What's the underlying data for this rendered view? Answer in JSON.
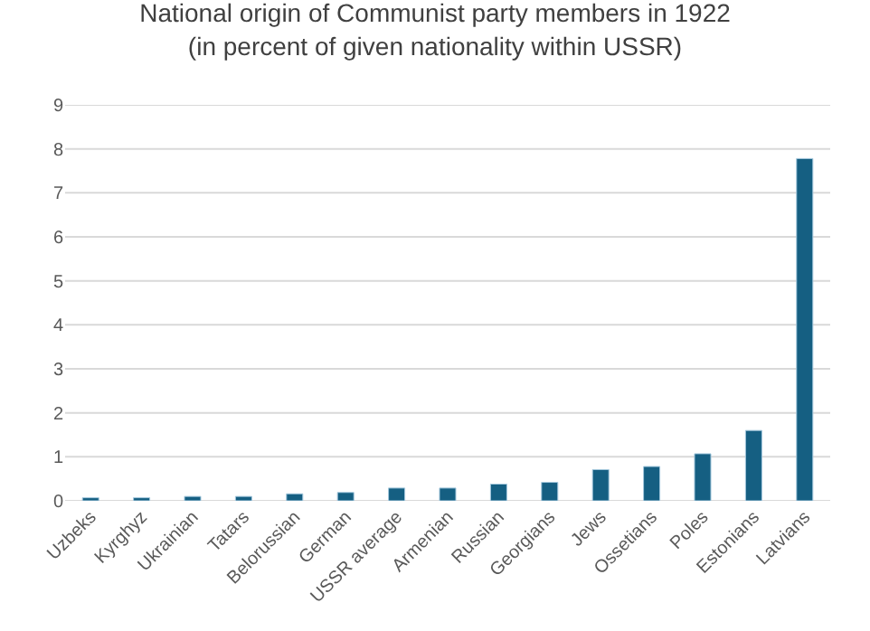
{
  "chart_data": {
    "type": "bar",
    "title": "National origin of Communist party members in 1922\n(in percent of given nationality within USSR)",
    "categories": [
      "Uzbeks",
      "Kyrghyz",
      "Ukrainian",
      "Tatars",
      "Belorussian",
      "German",
      "USSR average",
      "Armenian",
      "Russian",
      "Georgians",
      "Jews",
      "Ossetians",
      "Poles",
      "Estonians",
      "Latvians"
    ],
    "values": [
      0.07,
      0.07,
      0.1,
      0.1,
      0.16,
      0.19,
      0.29,
      0.29,
      0.38,
      0.42,
      0.71,
      0.78,
      1.07,
      1.6,
      7.78
    ],
    "color": "#155f82",
    "ylim": [
      0,
      9
    ],
    "yticks": [
      0,
      1,
      2,
      3,
      4,
      5,
      6,
      7,
      8,
      9
    ],
    "grid": "y"
  }
}
